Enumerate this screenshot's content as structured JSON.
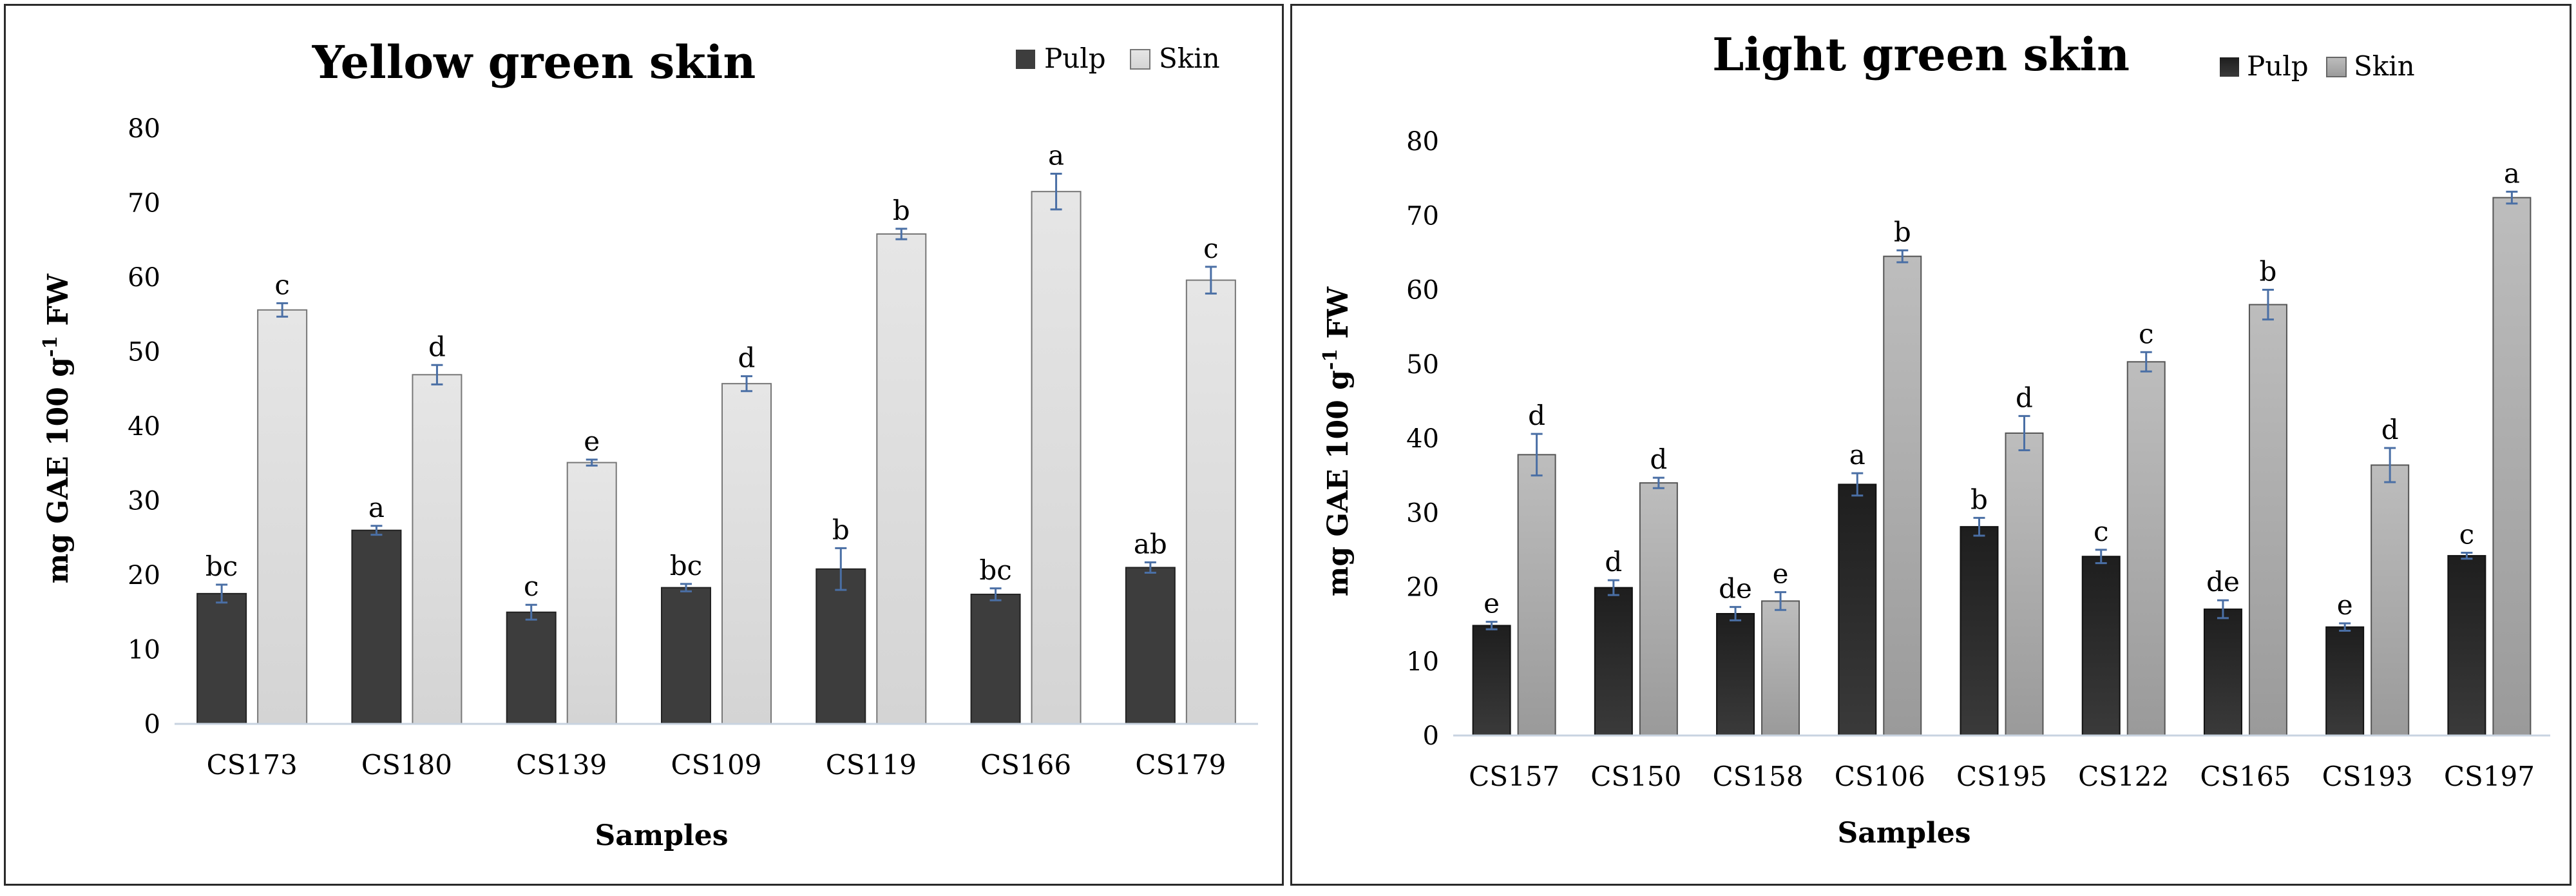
{
  "chart_data": [
    {
      "type": "bar",
      "title": "Yellow green skin",
      "xlabel": "Samples",
      "ylabel": "mg GAE 100 g⁻¹ FW",
      "ylim": [
        0,
        80
      ],
      "yticks": [
        0,
        10,
        20,
        30,
        40,
        50,
        60,
        70,
        80
      ],
      "categories": [
        "CS173",
        "CS180",
        "CS139",
        "CS109",
        "CS119",
        "CS166",
        "CS179"
      ],
      "legend_position": "top-right",
      "series": [
        {
          "name": "Pulp",
          "color": "#3d3d3d",
          "values": [
            17.5,
            26.0,
            15.0,
            18.3,
            20.8,
            17.4,
            21.0
          ],
          "errors": [
            1.2,
            0.6,
            1.0,
            0.5,
            2.8,
            0.8,
            0.7
          ],
          "letters": [
            "bc",
            "a",
            "c",
            "bc",
            "b",
            "bc",
            "ab"
          ]
        },
        {
          "name": "Skin",
          "color": "#d9d9d9",
          "values": [
            55.6,
            46.9,
            35.1,
            45.7,
            65.8,
            71.5,
            59.6
          ],
          "errors": [
            0.9,
            1.3,
            0.4,
            1.0,
            0.7,
            2.4,
            1.8
          ],
          "letters": [
            "c",
            "d",
            "e",
            "d",
            "b",
            "a",
            "c"
          ]
        }
      ]
    },
    {
      "type": "bar",
      "title": "Light green skin",
      "xlabel": "Samples",
      "ylabel": "mg GAE 100 g⁻¹ FW",
      "ylim": [
        0,
        80
      ],
      "yticks": [
        0,
        10,
        20,
        30,
        40,
        50,
        60,
        70,
        80
      ],
      "categories": [
        "CS157",
        "CS150",
        "CS158",
        "CS106",
        "CS195",
        "CS122",
        "CS165",
        "CS193",
        "CS197"
      ],
      "legend_position": "top-right",
      "series": [
        {
          "name": "Pulp",
          "color": "#262626",
          "values": [
            14.8,
            19.9,
            16.4,
            33.8,
            28.1,
            24.1,
            17.0,
            14.6,
            24.2
          ],
          "errors": [
            0.5,
            1.0,
            0.9,
            1.5,
            1.2,
            0.9,
            1.2,
            0.5,
            0.4
          ],
          "letters": [
            "e",
            "d",
            "de",
            "a",
            "b",
            "c",
            "de",
            "e",
            "c"
          ]
        },
        {
          "name": "Skin",
          "color": "#a6a6a6",
          "values": [
            37.8,
            34.0,
            18.1,
            64.5,
            40.7,
            50.3,
            58.0,
            36.4,
            72.4
          ],
          "errors": [
            2.8,
            0.7,
            1.2,
            0.8,
            2.3,
            1.3,
            2.0,
            2.3,
            0.8
          ],
          "letters": [
            "d",
            "d",
            "e",
            "b",
            "d",
            "c",
            "b",
            "d",
            "a"
          ]
        }
      ]
    }
  ]
}
